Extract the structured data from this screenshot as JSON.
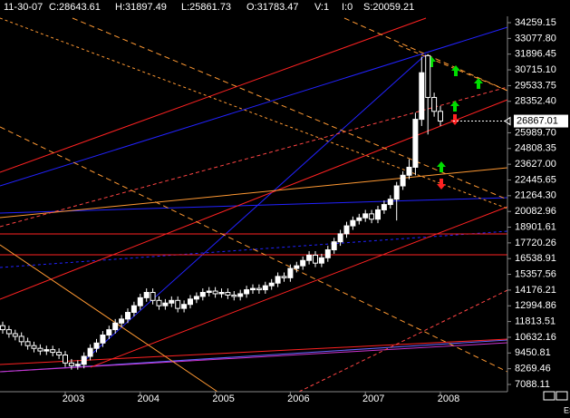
{
  "chart_data": {
    "type": "candlestick",
    "header": [
      "11-30-07",
      "C:28643.61",
      "H:31897.49",
      "L:25861.73",
      "O:31783.47",
      "V:1",
      "I:0",
      "S:20059.21"
    ],
    "symbol": "ES",
    "last_price": 26867.01,
    "categories": [
      null,
      null,
      null,
      null,
      null,
      null,
      null,
      null,
      null,
      null,
      "2003",
      null,
      null,
      null,
      null,
      null,
      null,
      null,
      null,
      null,
      null,
      null,
      "2004",
      null,
      null,
      null,
      null,
      null,
      null,
      null,
      null,
      null,
      null,
      null,
      "2005",
      null,
      null,
      null,
      null,
      null,
      null,
      null,
      null,
      null,
      null,
      null,
      "2006",
      null,
      null,
      null,
      null,
      null,
      null,
      null,
      null,
      null,
      null,
      null,
      "2007",
      null,
      null,
      null,
      null,
      null,
      null,
      null,
      null,
      null,
      null,
      null,
      "2008"
    ],
    "open": [
      11500,
      11200,
      10900,
      10700,
      10300,
      10000,
      9800,
      9600,
      9700,
      9500,
      9300,
      8700,
      8500,
      8600,
      9200,
      9800,
      10200,
      10800,
      11200,
      11700,
      12000,
      12500,
      13000,
      13600,
      14000,
      13400,
      13000,
      13200,
      13400,
      12800,
      13100,
      13500,
      13700,
      14000,
      14100,
      13900,
      14000,
      13800,
      13700,
      13900,
      14200,
      14300,
      14200,
      14500,
      14700,
      15200,
      15100,
      15800,
      16000,
      16400,
      16800,
      16200,
      16600,
      17200,
      17800,
      18400,
      19000,
      19400,
      19600,
      19900,
      19500,
      20200,
      20600,
      21000,
      22000,
      22800,
      23400,
      27000,
      31783.47,
      28643.61,
      27600
    ],
    "high": [
      11800,
      11500,
      11200,
      11000,
      10600,
      10300,
      10100,
      10000,
      10000,
      9800,
      9600,
      9000,
      8900,
      9500,
      10100,
      10500,
      11100,
      11500,
      12000,
      12300,
      12800,
      13300,
      13900,
      14300,
      14300,
      13700,
      13500,
      13700,
      13700,
      13400,
      13800,
      14000,
      14300,
      14400,
      14400,
      14300,
      14300,
      14100,
      14200,
      14500,
      14600,
      14600,
      14800,
      15000,
      15500,
      15500,
      16100,
      16300,
      16700,
      17100,
      17100,
      16900,
      17500,
      18100,
      18700,
      19300,
      19700,
      19900,
      20200,
      20200,
      20500,
      20900,
      21300,
      22300,
      23100,
      24000,
      27500,
      31700,
      31897.49,
      29000,
      28000
    ],
    "low": [
      10900,
      10600,
      10400,
      10000,
      9700,
      9500,
      9300,
      9300,
      9200,
      9000,
      8400,
      8200,
      8200,
      8300,
      8900,
      9500,
      9900,
      10500,
      10900,
      11400,
      11700,
      12200,
      12700,
      13300,
      13100,
      12700,
      12700,
      12900,
      12500,
      12500,
      12800,
      13200,
      13400,
      13700,
      13600,
      13600,
      13500,
      13400,
      13400,
      13600,
      13900,
      13900,
      13900,
      14200,
      14400,
      14800,
      14800,
      15500,
      15700,
      16100,
      15900,
      15900,
      16300,
      16900,
      17500,
      18100,
      18700,
      19100,
      19300,
      19200,
      19200,
      19900,
      20300,
      19400,
      21700,
      22500,
      22800,
      26500,
      25861.73,
      27200,
      26500
    ],
    "close": [
      11200,
      10900,
      10700,
      10300,
      10000,
      9800,
      9600,
      9700,
      9500,
      9300,
      8700,
      8500,
      8600,
      9200,
      9800,
      10200,
      10800,
      11200,
      11700,
      12000,
      12500,
      13000,
      13600,
      14000,
      13400,
      13000,
      13200,
      13400,
      12800,
      13100,
      13500,
      13700,
      14000,
      14100,
      13900,
      14000,
      13800,
      13700,
      13900,
      14200,
      14300,
      14200,
      14500,
      14700,
      15200,
      15100,
      15800,
      16000,
      16400,
      16800,
      16200,
      16600,
      17200,
      17800,
      18400,
      19000,
      19400,
      19600,
      19900,
      19500,
      20200,
      20600,
      21000,
      22000,
      22800,
      23400,
      27000,
      30500,
      28643.61,
      27600,
      26867.01
    ],
    "up_color": "#ffffff",
    "down_color": "#000000",
    "ylim": [
      6543,
      34736
    ],
    "yticks": [
      34259.15,
      {
        "value": 33077.8,
        "label": "33077.80"
      },
      31896.45,
      {
        "value": 30715.1,
        "label": "30715.10"
      },
      29533.75,
      {
        "value": 28352.4,
        "label": "28352.40"
      },
      {
        "value": 25989.7,
        "label": "25989.70"
      },
      24808.35,
      {
        "value": 23627,
        "label": "23627.00"
      },
      22445.65,
      {
        "value": 21264.3,
        "label": "21264.30"
      },
      20082.96,
      18901.61,
      17720.26,
      16538.91,
      15357.56,
      14176.21,
      12994.86,
      11813.51,
      10632.16,
      9450.81,
      8269.46,
      7088.11
    ]
  }
}
